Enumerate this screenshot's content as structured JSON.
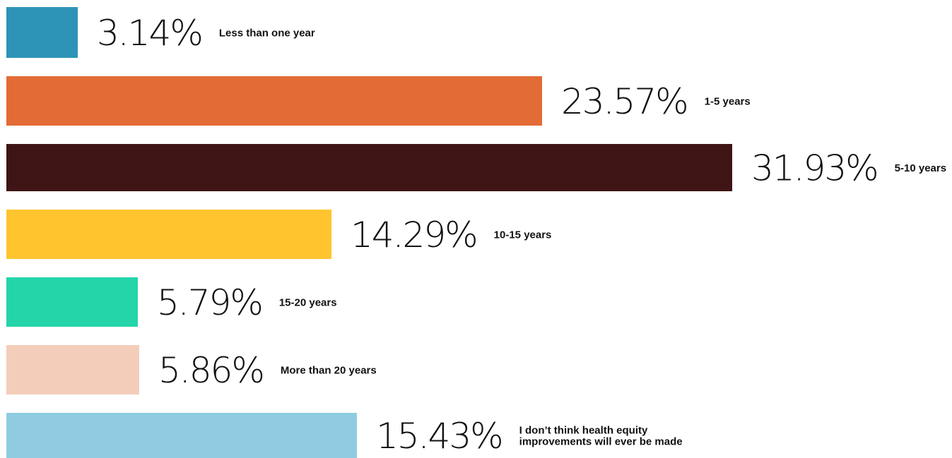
{
  "chart_data": {
    "type": "bar",
    "orientation": "horizontal",
    "title": "",
    "xlabel": "",
    "ylabel": "",
    "grid": false,
    "legend": "none",
    "categories": [
      [
        "Less than one year"
      ],
      [
        "1-5 years"
      ],
      [
        "5-10 years"
      ],
      [
        "10-15 years"
      ],
      [
        "15-20 years"
      ],
      [
        "More than 20 years"
      ],
      [
        "I don’t think health equity",
        "improvements will ever be made"
      ]
    ],
    "values": [
      3.14,
      23.57,
      31.93,
      14.29,
      5.79,
      5.86,
      15.43
    ],
    "value_labels": [
      "3.14%",
      "23.57%",
      "31.93%",
      "14.29%",
      "5.79%",
      "5.86%",
      "15.43%"
    ],
    "colors": [
      "#2E94B7",
      "#E36B35",
      "#3F1414",
      "#FFC42E",
      "#23D5A9",
      "#F4CDBA",
      "#8FCCE1"
    ],
    "xlim": [
      0,
      31.93
    ]
  }
}
